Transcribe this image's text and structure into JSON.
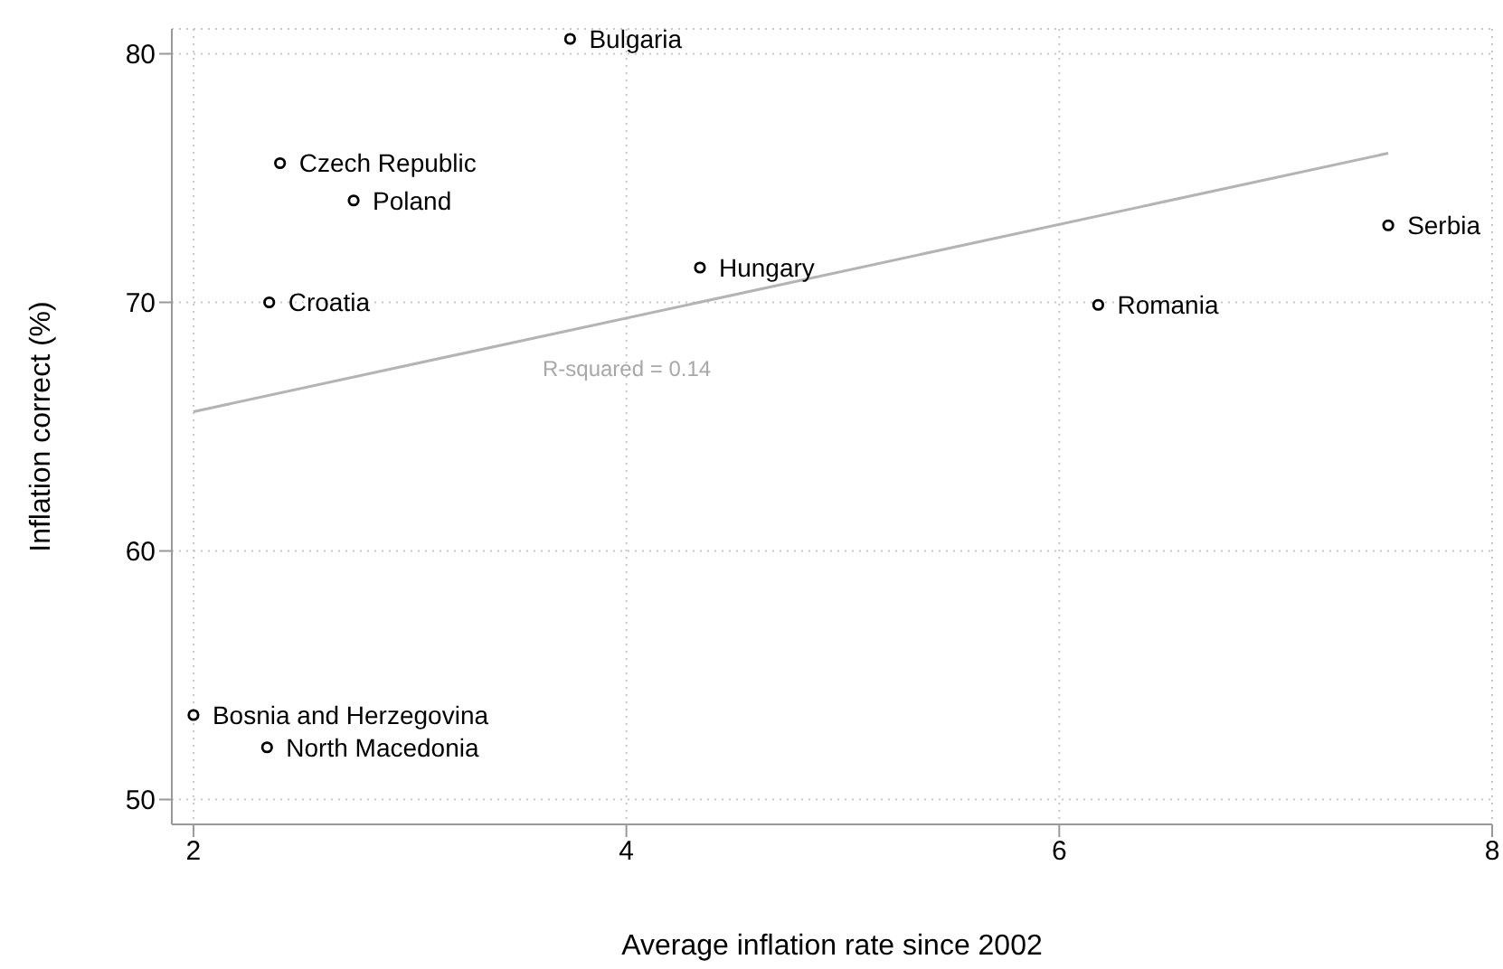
{
  "chart_data": {
    "type": "scatter",
    "xlabel": "Average inflation rate since 2002",
    "ylabel": "Inflation correct (%)",
    "xlim": [
      1.9,
      8
    ],
    "xticks": [
      2,
      4,
      6,
      8
    ],
    "ylim": [
      49,
      81
    ],
    "yticks": [
      50,
      60,
      70,
      80
    ],
    "grid": true,
    "marker": "circle",
    "series": [
      {
        "color": "#000000",
        "x": [
          3.74,
          2.4,
          2.74,
          2.35,
          4.34,
          6.18,
          7.52,
          2.0,
          2.34
        ],
        "values": [
          80.6,
          75.6,
          74.1,
          70.0,
          71.4,
          69.9,
          73.1,
          53.4,
          52.1
        ]
      },
      {
        "type": "line",
        "color": "#b4b4b4",
        "marker": "none",
        "x": [
          2.0,
          7.52
        ],
        "values": [
          65.6,
          76.0
        ]
      }
    ],
    "annotations": [
      {
        "text": "Bulgaria",
        "x": 3.74,
        "y": 80.6
      },
      {
        "text": "Czech Republic",
        "x": 2.4,
        "y": 75.6
      },
      {
        "text": "Poland",
        "x": 2.74,
        "y": 74.1
      },
      {
        "text": "Croatia",
        "x": 2.35,
        "y": 70.0
      },
      {
        "text": "Hungary",
        "x": 4.34,
        "y": 71.4
      },
      {
        "text": "Romania",
        "x": 6.18,
        "y": 69.9
      },
      {
        "text": "Serbia",
        "x": 7.52,
        "y": 73.1
      },
      {
        "text": "Bosnia and Herzegovina",
        "x": 2.0,
        "y": 53.4
      },
      {
        "text": "North Macedonia",
        "x": 2.34,
        "y": 52.1
      },
      "R-squared = 0.14"
    ]
  }
}
